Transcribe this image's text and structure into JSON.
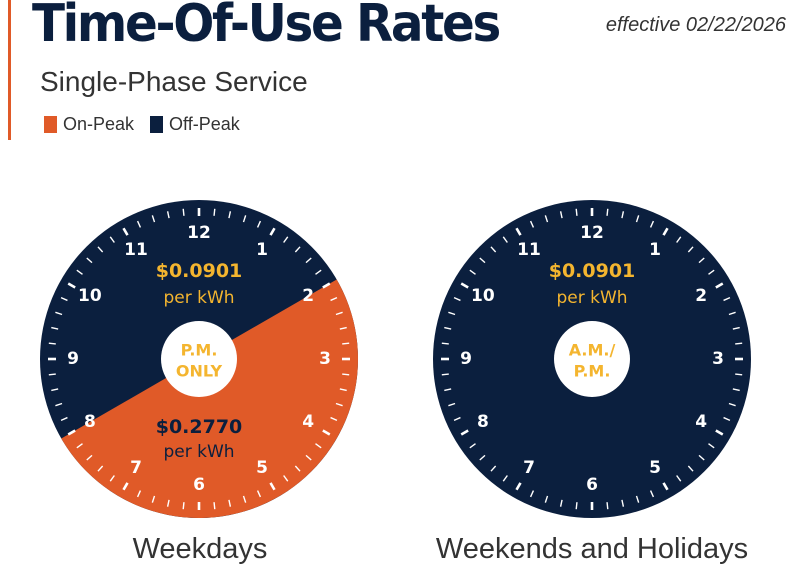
{
  "header": {
    "title": "Time-Of-Use Rates",
    "subtitle": "Single-Phase Service",
    "effective": "effective 02/22/2026"
  },
  "legend": [
    {
      "label": "On-Peak",
      "color": "#e05a28"
    },
    {
      "label": "Off-Peak",
      "color": "#0b1f3e"
    }
  ],
  "colors": {
    "navy": "#0b1f3e",
    "orange": "#e05a28",
    "gold": "#f4b52f",
    "white": "#ffffff"
  },
  "hours": [
    "12",
    "1",
    "2",
    "3",
    "4",
    "5",
    "6",
    "7",
    "8",
    "9",
    "10",
    "11"
  ],
  "clocks": [
    {
      "caption": "Weekdays",
      "center_label": [
        "P.M.",
        "ONLY"
      ],
      "off_peak": {
        "rate": "$0.0901",
        "unit": "per kWh"
      },
      "on_peak": {
        "rate": "$0.2770",
        "unit": "per kWh",
        "start_hour": 2,
        "end_hour": 8
      }
    },
    {
      "caption": "Weekends and Holidays",
      "center_label": [
        "A.M./",
        "P.M."
      ],
      "off_peak": {
        "rate": "$0.0901",
        "unit": "per kWh"
      }
    }
  ]
}
